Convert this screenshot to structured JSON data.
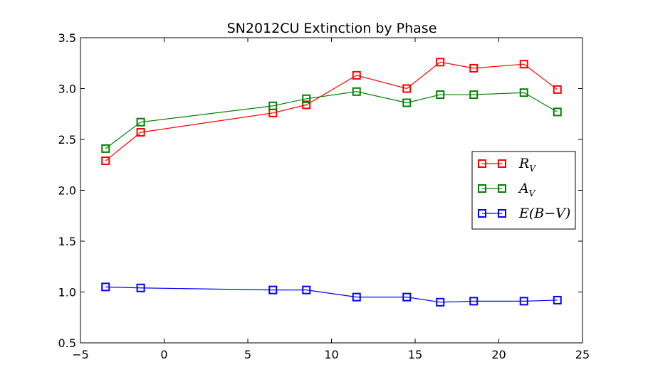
{
  "chart_data": {
    "type": "line",
    "title": "SN2012CU Extinction by Phase",
    "xlabel": "",
    "ylabel": "",
    "xlim": [
      -5,
      25
    ],
    "ylim": [
      0.5,
      3.5
    ],
    "x_ticks": [
      -5,
      0,
      5,
      10,
      15,
      20,
      25
    ],
    "x_tick_labels": [
      "−5",
      "0",
      "5",
      "10",
      "15",
      "20",
      "25"
    ],
    "y_ticks": [
      0.5,
      1.0,
      1.5,
      2.0,
      2.5,
      3.0,
      3.5
    ],
    "y_tick_labels": [
      "0.5",
      "1.0",
      "1.5",
      "2.0",
      "2.5",
      "3.0",
      "3.5"
    ],
    "grid": false,
    "legend_position": "center-right",
    "marker": "hollow-square",
    "x": [
      -3.5,
      -1.4,
      6.5,
      8.5,
      11.5,
      14.5,
      16.5,
      18.5,
      21.5,
      23.5
    ],
    "series": [
      {
        "name": "R_V",
        "legend_main": "R",
        "legend_sub": "V",
        "color": "#ff0000",
        "values": [
          2.29,
          2.57,
          2.76,
          2.84,
          3.13,
          3.0,
          3.26,
          3.2,
          3.24,
          2.99
        ]
      },
      {
        "name": "A_V",
        "legend_main": "A",
        "legend_sub": "V",
        "color": "#008000",
        "values": [
          2.41,
          2.67,
          2.83,
          2.9,
          2.97,
          2.86,
          2.94,
          2.94,
          2.96,
          2.77
        ]
      },
      {
        "name": "E(B−V)",
        "legend_main": "E(B−V)",
        "legend_sub": "",
        "color": "#0000ff",
        "values": [
          1.05,
          1.04,
          1.02,
          1.02,
          0.95,
          0.95,
          0.9,
          0.91,
          0.91,
          0.92
        ]
      }
    ]
  }
}
